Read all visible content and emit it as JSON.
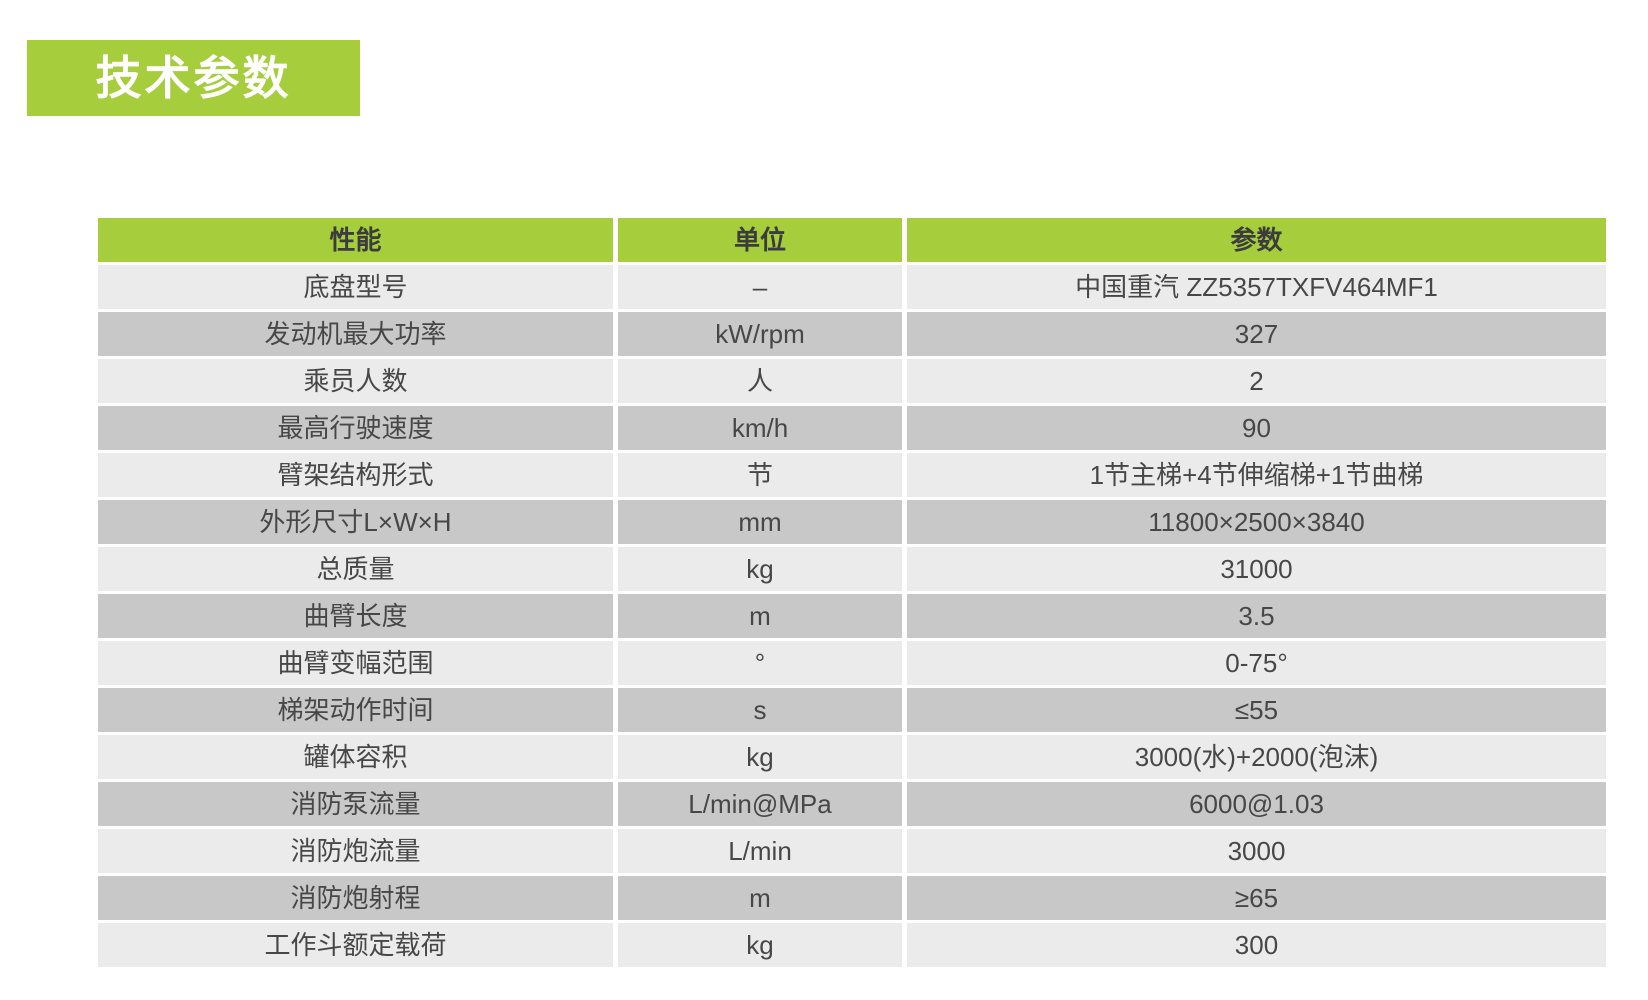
{
  "banner": {
    "title": "技术参数"
  },
  "table": {
    "columns": [
      "性能",
      "单位",
      "参数"
    ],
    "rows": [
      {
        "label": "底盘型号",
        "unit": "–",
        "value": "中国重汽 ZZ5357TXFV464MF1"
      },
      {
        "label": "发动机最大功率",
        "unit": "kW/rpm",
        "value": "327"
      },
      {
        "label": "乘员人数",
        "unit": "人",
        "value": "2"
      },
      {
        "label": "最高行驶速度",
        "unit": "km/h",
        "value": "90"
      },
      {
        "label": "臂架结构形式",
        "unit": "节",
        "value": "1节主梯+4节伸缩梯+1节曲梯"
      },
      {
        "label": "外形尺寸L×W×H",
        "unit": "mm",
        "value": "11800×2500×3840"
      },
      {
        "label": "总质量",
        "unit": "kg",
        "value": "31000"
      },
      {
        "label": "曲臂长度",
        "unit": "m",
        "value": "3.5"
      },
      {
        "label": "曲臂变幅范围",
        "unit": "°",
        "value": "0-75°"
      },
      {
        "label": "梯架动作时间",
        "unit": "s",
        "value": "≤55"
      },
      {
        "label": "罐体容积",
        "unit": "kg",
        "value": "3000(水)+2000(泡沫)"
      },
      {
        "label": "消防泵流量",
        "unit": "L/min@MPa",
        "value": "6000@1.03"
      },
      {
        "label": "消防炮流量",
        "unit": "L/min",
        "value": "3000"
      },
      {
        "label": "消防炮射程",
        "unit": "m",
        "value": "≥65"
      },
      {
        "label": "工作斗额定载荷",
        "unit": "kg",
        "value": "300"
      }
    ]
  },
  "colors": {
    "accent_green": "#a5cd3c",
    "row_light": "#ebebeb",
    "row_dark": "#c8c8c8",
    "header_text": "#3c3c3c",
    "cell_text": "#474747",
    "banner_text": "#ffffff"
  }
}
